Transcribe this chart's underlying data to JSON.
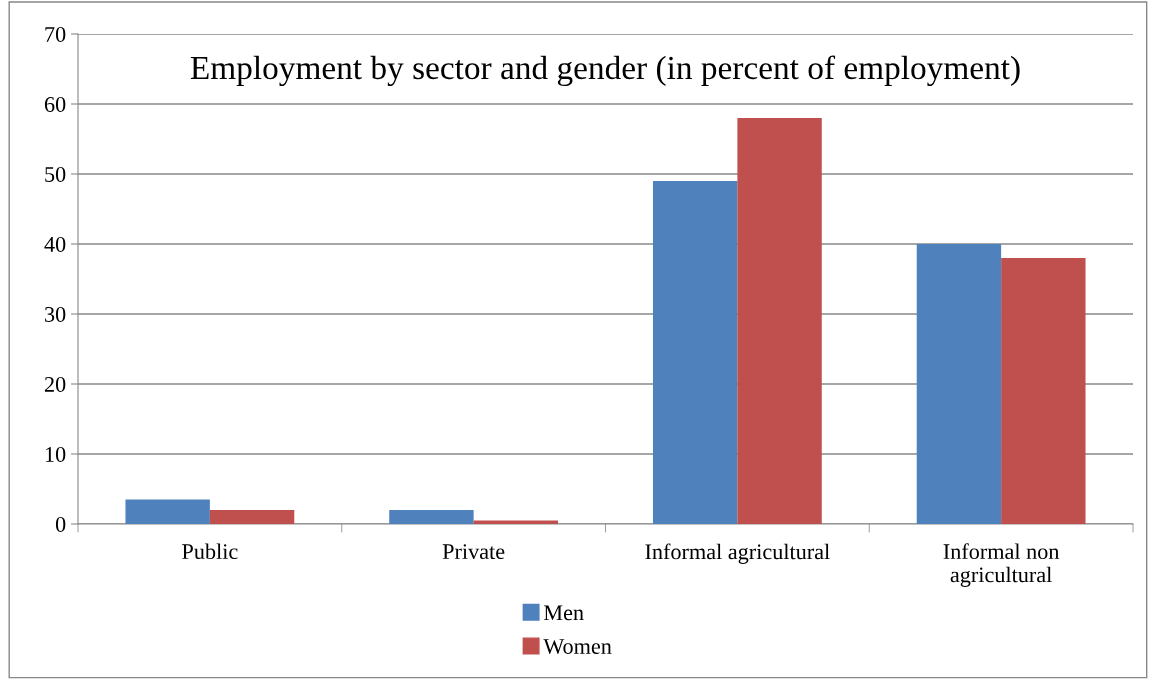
{
  "chart_data": {
    "type": "bar",
    "title": "Employment by sector and gender (in percent of employment)",
    "categories": [
      "Public",
      "Private",
      "Informal agricultural",
      "Informal non\nagricultural"
    ],
    "series": [
      {
        "name": "Men",
        "color": "#4f81bd",
        "values": [
          3.5,
          2,
          49,
          40
        ]
      },
      {
        "name": "Women",
        "color": "#c0504d",
        "values": [
          2,
          0.5,
          58,
          38
        ]
      }
    ],
    "ylim": [
      0,
      70
    ],
    "yticks": [
      0,
      10,
      20,
      30,
      40,
      50,
      60,
      70
    ],
    "grid": "y",
    "legend": "bottom"
  }
}
